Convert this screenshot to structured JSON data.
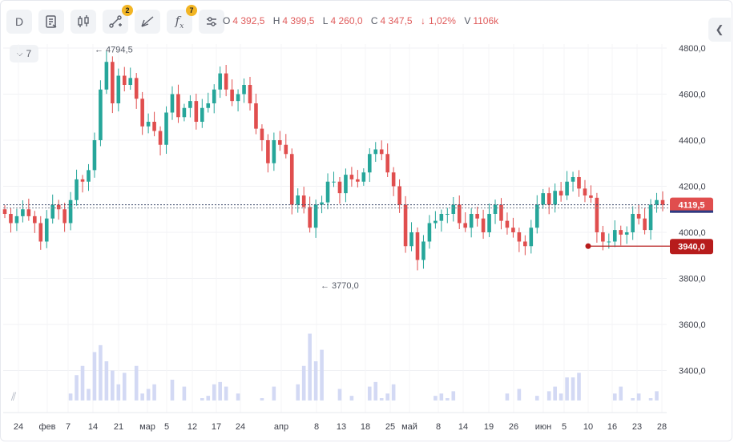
{
  "toolbar": {
    "interval_label": "D",
    "indicator_badge": "2",
    "fx_badge": "7",
    "icons": [
      "report-icon",
      "candles-icon",
      "draw-tools-icon",
      "pattern-icon",
      "fx-icon",
      "settings-icon"
    ]
  },
  "ohlc": {
    "o_label": "O",
    "o_value": "4 392,5",
    "h_label": "H",
    "h_value": "4 399,5",
    "l_label": "L",
    "l_value": "4 260,0",
    "c_label": "C",
    "c_value": "4 347,5",
    "change_arrow": "↓",
    "change_pct": "1,02%",
    "v_label": "V",
    "v_value": "1106k"
  },
  "period_selector": {
    "value": "7"
  },
  "colors": {
    "up": "#26a69a",
    "down": "#e04e4e",
    "volume": "#d3d9f4",
    "badge": "#f2b524"
  },
  "chart_data": {
    "type": "candlestick",
    "y_axis": {
      "ticks": [
        "3400,0",
        "3600,0",
        "3800,0",
        "4000,0",
        "4200,0",
        "4400,0",
        "4600,0",
        "4800,0"
      ],
      "range": [
        3270,
        4830
      ]
    },
    "x_axis": {
      "ticks": [
        "24",
        "фев",
        "7",
        "14",
        "21",
        "мар",
        "5",
        "12",
        "17",
        "24",
        "апр",
        "8",
        "13",
        "18",
        "25",
        "май",
        "8",
        "14",
        "19",
        "26",
        "июн",
        "5",
        "10",
        "16",
        "23",
        "28"
      ]
    },
    "last_price_label": "4119,5",
    "alert_price_label": "3940,0",
    "high_annotation": "4794,5",
    "low_annotation": "3770,0",
    "closes": [
      4080,
      4040,
      4070,
      4100,
      4070,
      4040,
      3960,
      4060,
      4120,
      4100,
      4040,
      4140,
      4230,
      4220,
      4270,
      4400,
      4620,
      4740,
      4560,
      4680,
      4640,
      4670,
      4580,
      4460,
      4480,
      4440,
      4380,
      4520,
      4600,
      4500,
      4540,
      4570,
      4480,
      4540,
      4560,
      4620,
      4690,
      4620,
      4570,
      4600,
      4640,
      4560,
      4450,
      4400,
      4300,
      4400,
      4380,
      4340,
      4120,
      4160,
      4110,
      4020,
      4120,
      4130,
      4220,
      4220,
      4170,
      4250,
      4230,
      4220,
      4260,
      4340,
      4360,
      4340,
      4260,
      4200,
      4120,
      3940,
      4000,
      3880,
      3960,
      4040,
      4050,
      4080,
      4080,
      4120,
      4040,
      4020,
      4080,
      4060,
      4000,
      4080,
      4120,
      4050,
      4020,
      4000,
      3960,
      3940,
      4020,
      4120,
      4170,
      4120,
      4180,
      4160,
      4220,
      4240,
      4190,
      4160,
      4150,
      4000,
      3960,
      3960,
      4010,
      3990,
      4000,
      4080,
      4060,
      4010,
      4120,
      4140,
      4119.5
    ],
    "volumes": [
      3200,
      3210,
      3190,
      3240,
      3200,
      3180,
      3220,
      3210,
      3200,
      3250,
      3230,
      3300,
      3380,
      3420,
      3320,
      3480,
      3510,
      3440,
      3400,
      3340,
      3390,
      3230,
      3420,
      3300,
      3320,
      3340,
      3250,
      3220,
      3360,
      3270,
      3330,
      3240,
      3260,
      3280,
      3290,
      3340,
      3350,
      3330,
      3260,
      3300,
      3240,
      3230,
      3250,
      3280,
      3210,
      3330,
      3200,
      3200,
      3230,
      3340,
      3420,
      3560,
      3440,
      3490,
      3220,
      3250,
      3320,
      3240,
      3290,
      3230,
      3270,
      3330,
      3350,
      3280,
      3300,
      3340,
      3250,
      3220,
      3230,
      3210,
      3210,
      3250,
      3290,
      3300,
      3280,
      3310,
      3250,
      3220,
      3260,
      3240,
      3210,
      3260,
      3230,
      3230,
      3300,
      3250,
      3320,
      3250,
      3230,
      3290,
      3250,
      3310,
      3330,
      3300,
      3370,
      3370,
      3390,
      3270,
      3270,
      3270,
      3250,
      3230,
      3300,
      3330,
      3270,
      3280,
      3300,
      3270,
      3280,
      3310,
      3240
    ]
  }
}
